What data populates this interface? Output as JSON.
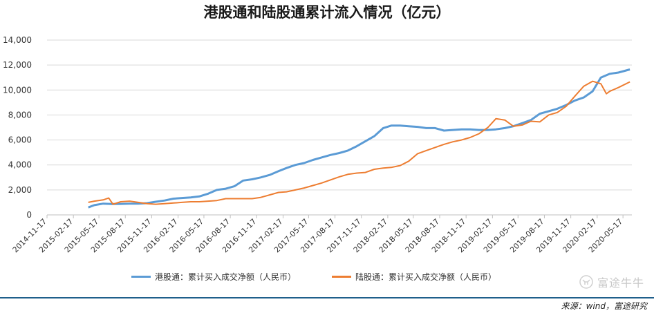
{
  "page": {
    "source_label": "来源：wind，富途研究",
    "watermark_text": "富途牛牛",
    "watermark_icon": "futu-bull-icon"
  },
  "chart_data": {
    "type": "line",
    "title": "港股通和陆股通累计流入情况（亿元）",
    "xlabel": "",
    "ylabel": "",
    "ylim": [
      0,
      14000
    ],
    "yticks": [
      0,
      2000,
      4000,
      6000,
      8000,
      10000,
      12000,
      14000
    ],
    "ytick_labels": [
      "0",
      "2,000",
      "4,000",
      "6,000",
      "8,000",
      "10,000",
      "12,000",
      "14,000"
    ],
    "xlim": [
      "2014-11-17",
      "2020-06-17"
    ],
    "xtick_labels": [
      "2014-11-17",
      "2015-02-17",
      "2015-05-17",
      "2015-08-17",
      "2015-11-17",
      "2016-02-17",
      "2016-05-17",
      "2016-08-17",
      "2016-11-17",
      "2017-02-17",
      "2017-05-17",
      "2017-08-17",
      "2017-11-17",
      "2018-02-17",
      "2018-05-17",
      "2018-08-17",
      "2018-11-17",
      "2019-02-17",
      "2019-05-17",
      "2019-08-17",
      "2019-11-17",
      "2020-02-17",
      "2020-05-17"
    ],
    "grid": "horizontal",
    "legend_position": "bottom",
    "series": [
      {
        "name": "港股通：累计买入成交净额（人民币）",
        "color": "#5b9bd5",
        "points": [
          [
            "2015-04-10",
            600
          ],
          [
            "2015-05-01",
            780
          ],
          [
            "2015-06-01",
            900
          ],
          [
            "2015-07-01",
            870
          ],
          [
            "2015-08-01",
            880
          ],
          [
            "2015-09-01",
            900
          ],
          [
            "2015-10-01",
            900
          ],
          [
            "2015-11-01",
            940
          ],
          [
            "2015-12-01",
            1050
          ],
          [
            "2016-01-01",
            1150
          ],
          [
            "2016-02-01",
            1300
          ],
          [
            "2016-03-01",
            1350
          ],
          [
            "2016-04-01",
            1400
          ],
          [
            "2016-05-01",
            1480
          ],
          [
            "2016-06-01",
            1700
          ],
          [
            "2016-07-01",
            2000
          ],
          [
            "2016-08-01",
            2100
          ],
          [
            "2016-09-01",
            2300
          ],
          [
            "2016-10-01",
            2750
          ],
          [
            "2016-11-01",
            2850
          ],
          [
            "2016-12-01",
            3000
          ],
          [
            "2017-01-01",
            3200
          ],
          [
            "2017-02-01",
            3500
          ],
          [
            "2017-03-01",
            3750
          ],
          [
            "2017-04-01",
            4000
          ],
          [
            "2017-05-01",
            4150
          ],
          [
            "2017-06-01",
            4400
          ],
          [
            "2017-07-01",
            4600
          ],
          [
            "2017-08-01",
            4800
          ],
          [
            "2017-09-01",
            4950
          ],
          [
            "2017-10-01",
            5150
          ],
          [
            "2017-11-01",
            5500
          ],
          [
            "2017-12-01",
            5900
          ],
          [
            "2018-01-01",
            6300
          ],
          [
            "2018-02-01",
            6950
          ],
          [
            "2018-03-01",
            7150
          ],
          [
            "2018-04-01",
            7150
          ],
          [
            "2018-05-01",
            7100
          ],
          [
            "2018-06-01",
            7050
          ],
          [
            "2018-07-01",
            6950
          ],
          [
            "2018-08-01",
            6950
          ],
          [
            "2018-09-01",
            6750
          ],
          [
            "2018-10-01",
            6800
          ],
          [
            "2018-11-01",
            6850
          ],
          [
            "2018-12-01",
            6850
          ],
          [
            "2019-01-01",
            6800
          ],
          [
            "2019-02-01",
            6800
          ],
          [
            "2019-03-01",
            6850
          ],
          [
            "2019-04-01",
            6950
          ],
          [
            "2019-05-01",
            7100
          ],
          [
            "2019-06-01",
            7350
          ],
          [
            "2019-07-01",
            7600
          ],
          [
            "2019-08-01",
            8100
          ],
          [
            "2019-09-01",
            8300
          ],
          [
            "2019-10-01",
            8500
          ],
          [
            "2019-11-01",
            8800
          ],
          [
            "2019-12-01",
            9150
          ],
          [
            "2020-01-01",
            9400
          ],
          [
            "2020-02-01",
            9900
          ],
          [
            "2020-03-01",
            11000
          ],
          [
            "2020-04-01",
            11300
          ],
          [
            "2020-05-01",
            11400
          ],
          [
            "2020-06-10",
            11650
          ]
        ]
      },
      {
        "name": "陆股通：累计买入成交净额（人民币）",
        "color": "#ed7d31",
        "points": [
          [
            "2015-04-10",
            1000
          ],
          [
            "2015-05-01",
            1100
          ],
          [
            "2015-06-01",
            1200
          ],
          [
            "2015-06-20",
            1350
          ],
          [
            "2015-07-05",
            850
          ],
          [
            "2015-08-01",
            1050
          ],
          [
            "2015-09-01",
            1100
          ],
          [
            "2015-10-01",
            1000
          ],
          [
            "2015-11-01",
            900
          ],
          [
            "2015-12-01",
            850
          ],
          [
            "2016-01-01",
            900
          ],
          [
            "2016-02-01",
            950
          ],
          [
            "2016-03-01",
            1000
          ],
          [
            "2016-04-01",
            1050
          ],
          [
            "2016-05-01",
            1050
          ],
          [
            "2016-06-01",
            1100
          ],
          [
            "2016-07-01",
            1150
          ],
          [
            "2016-08-01",
            1300
          ],
          [
            "2016-09-01",
            1300
          ],
          [
            "2016-10-01",
            1300
          ],
          [
            "2016-11-01",
            1300
          ],
          [
            "2016-12-01",
            1400
          ],
          [
            "2017-01-01",
            1600
          ],
          [
            "2017-02-01",
            1800
          ],
          [
            "2017-03-01",
            1850
          ],
          [
            "2017-04-01",
            2000
          ],
          [
            "2017-05-01",
            2150
          ],
          [
            "2017-06-01",
            2350
          ],
          [
            "2017-07-01",
            2550
          ],
          [
            "2017-08-01",
            2800
          ],
          [
            "2017-09-01",
            3050
          ],
          [
            "2017-10-01",
            3250
          ],
          [
            "2017-11-01",
            3350
          ],
          [
            "2017-12-01",
            3400
          ],
          [
            "2018-01-01",
            3650
          ],
          [
            "2018-02-01",
            3750
          ],
          [
            "2018-03-01",
            3800
          ],
          [
            "2018-04-01",
            3950
          ],
          [
            "2018-05-01",
            4300
          ],
          [
            "2018-06-01",
            4900
          ],
          [
            "2018-07-01",
            5150
          ],
          [
            "2018-08-01",
            5400
          ],
          [
            "2018-09-01",
            5650
          ],
          [
            "2018-10-01",
            5850
          ],
          [
            "2018-11-01",
            6000
          ],
          [
            "2018-12-01",
            6200
          ],
          [
            "2019-01-01",
            6500
          ],
          [
            "2019-02-01",
            7000
          ],
          [
            "2019-03-01",
            7700
          ],
          [
            "2019-04-01",
            7600
          ],
          [
            "2019-05-01",
            7100
          ],
          [
            "2019-06-01",
            7200
          ],
          [
            "2019-07-01",
            7500
          ],
          [
            "2019-08-01",
            7450
          ],
          [
            "2019-09-01",
            8000
          ],
          [
            "2019-10-01",
            8200
          ],
          [
            "2019-11-01",
            8700
          ],
          [
            "2019-12-01",
            9500
          ],
          [
            "2020-01-01",
            10300
          ],
          [
            "2020-02-01",
            10700
          ],
          [
            "2020-03-01",
            10500
          ],
          [
            "2020-03-20",
            9700
          ],
          [
            "2020-04-01",
            9900
          ],
          [
            "2020-05-01",
            10200
          ],
          [
            "2020-06-10",
            10650
          ]
        ]
      }
    ]
  }
}
